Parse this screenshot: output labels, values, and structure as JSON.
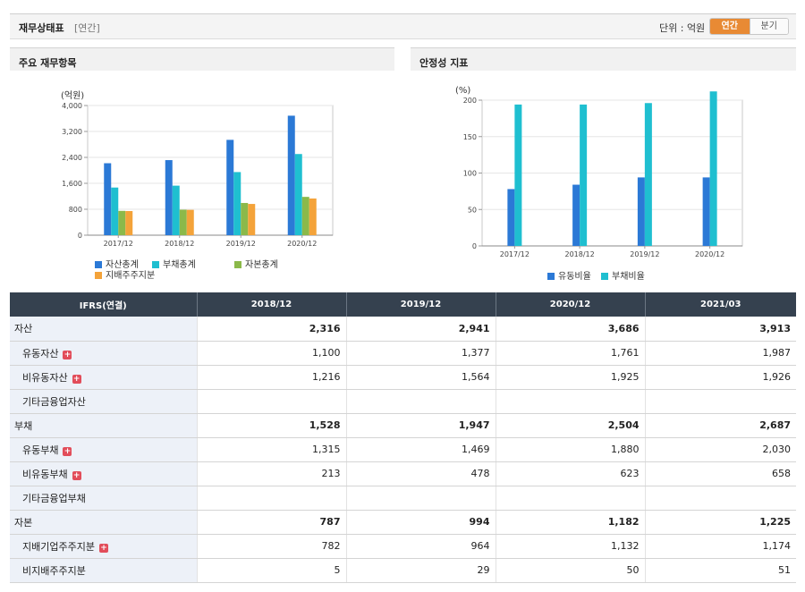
{
  "header": {
    "title": "재무상태표",
    "period_tag": "[연간]",
    "unit_label": "단위 : 억원",
    "toggle": {
      "annual": "연간",
      "quarter": "분기",
      "selected": "annual"
    }
  },
  "panels": {
    "left_title": "주요 재무항목",
    "right_title": "안정성 지표"
  },
  "colors": {
    "blue": "#2b79d6",
    "cyan": "#1fbfd0",
    "green": "#8bb94a",
    "orange": "#f4a33a",
    "accent": "#e88a34",
    "table_header": "#35414f"
  },
  "chart_data": [
    {
      "type": "bar",
      "unit_label": "(억원)",
      "categories": [
        "2017/12",
        "2018/12",
        "2019/12",
        "2020/12"
      ],
      "ylim": [
        0,
        4000
      ],
      "yticks": [
        0,
        800,
        1600,
        2400,
        3200,
        4000
      ],
      "ytick_labels": [
        "0",
        "800",
        "1,600",
        "2,400",
        "3,200",
        "4,000"
      ],
      "series": [
        {
          "name": "자산총계",
          "color": "#2b79d6",
          "values": [
            2220,
            2316,
            2941,
            3686
          ]
        },
        {
          "name": "부채총계",
          "color": "#1fbfd0",
          "values": [
            1470,
            1528,
            1947,
            2504
          ]
        },
        {
          "name": "자본총계",
          "color": "#8bb94a",
          "values": [
            750,
            787,
            994,
            1182
          ]
        },
        {
          "name": "지배주주지분",
          "color": "#f4a33a",
          "values": [
            745,
            782,
            964,
            1132
          ]
        }
      ],
      "legend": "bottom",
      "grid": true
    },
    {
      "type": "bar",
      "unit_label": "(%)",
      "categories": [
        "2017/12",
        "2018/12",
        "2019/12",
        "2020/12"
      ],
      "ylim": [
        0,
        200
      ],
      "yticks": [
        0,
        50,
        100,
        150,
        200
      ],
      "ytick_labels": [
        "0",
        "50",
        "100",
        "150",
        "200"
      ],
      "series": [
        {
          "name": "유동비율",
          "color": "#2b79d6",
          "values": [
            78,
            84,
            94,
            94
          ]
        },
        {
          "name": "부채비율",
          "color": "#1fbfd0",
          "values": [
            194,
            194,
            196,
            212
          ]
        }
      ],
      "legend": "bottom",
      "grid": true
    }
  ],
  "table": {
    "header_label": "IFRS(연결)",
    "columns": [
      "2018/12",
      "2019/12",
      "2020/12",
      "2021/03"
    ],
    "rows": [
      {
        "label": "자산",
        "level": "main",
        "expand": false,
        "values": [
          "2,316",
          "2,941",
          "3,686",
          "3,913"
        ]
      },
      {
        "label": "유동자산",
        "level": "sub",
        "expand": true,
        "values": [
          "1,100",
          "1,377",
          "1,761",
          "1,987"
        ]
      },
      {
        "label": "비유동자산",
        "level": "sub",
        "expand": true,
        "values": [
          "1,216",
          "1,564",
          "1,925",
          "1,926"
        ]
      },
      {
        "label": "기타금융업자산",
        "level": "sub",
        "expand": false,
        "values": [
          "",
          "",
          "",
          ""
        ]
      },
      {
        "label": "부채",
        "level": "main",
        "expand": false,
        "values": [
          "1,528",
          "1,947",
          "2,504",
          "2,687"
        ]
      },
      {
        "label": "유동부채",
        "level": "sub",
        "expand": true,
        "values": [
          "1,315",
          "1,469",
          "1,880",
          "2,030"
        ]
      },
      {
        "label": "비유동부채",
        "level": "sub",
        "expand": true,
        "values": [
          "213",
          "478",
          "623",
          "658"
        ]
      },
      {
        "label": "기타금융업부채",
        "level": "sub",
        "expand": false,
        "values": [
          "",
          "",
          "",
          ""
        ]
      },
      {
        "label": "자본",
        "level": "main",
        "expand": false,
        "values": [
          "787",
          "994",
          "1,182",
          "1,225"
        ]
      },
      {
        "label": "지배기업주주지분",
        "level": "sub",
        "expand": true,
        "values": [
          "782",
          "964",
          "1,132",
          "1,174"
        ]
      },
      {
        "label": "비지배주주지분",
        "level": "sub",
        "expand": false,
        "values": [
          "5",
          "29",
          "50",
          "51"
        ]
      }
    ],
    "expand_icon": "plus-icon",
    "expand_glyph": "+"
  }
}
